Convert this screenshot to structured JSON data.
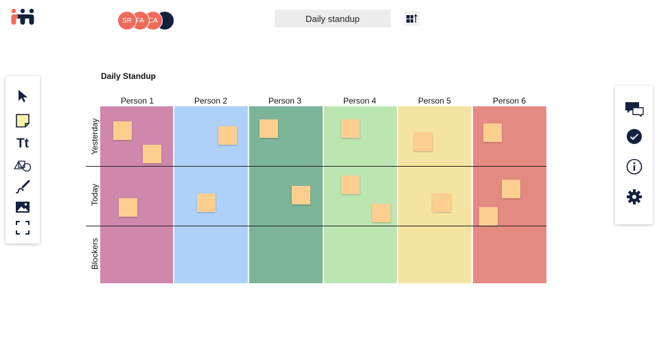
{
  "app": {
    "logo_icon": "team-logo",
    "board_title_box": "Daily standup",
    "layout_button_icon": "layout-sort-icon"
  },
  "avatars": [
    {
      "initials": "SR",
      "color": "#ef6a5a"
    },
    {
      "initials": "FA",
      "color": "#ef6a5a"
    },
    {
      "initials": "CA",
      "color": "#ef6a5a"
    },
    {
      "initials": "",
      "color": "#14213d"
    }
  ],
  "left_toolbar": [
    {
      "name": "select-tool",
      "icon": "cursor-icon"
    },
    {
      "name": "sticky-note-tool",
      "icon": "sticky-note-icon"
    },
    {
      "name": "text-tool",
      "icon": "text-icon",
      "label": "Tt"
    },
    {
      "name": "shapes-tool",
      "icon": "shapes-icon"
    },
    {
      "name": "pen-tool",
      "icon": "pen-icon"
    },
    {
      "name": "image-tool",
      "icon": "image-icon"
    },
    {
      "name": "frame-tool",
      "icon": "frame-icon"
    }
  ],
  "right_toolbar": [
    {
      "name": "comments-button",
      "icon": "chat-icon"
    },
    {
      "name": "vote-button",
      "icon": "check-circle-icon"
    },
    {
      "name": "info-button",
      "icon": "info-icon"
    },
    {
      "name": "settings-button",
      "icon": "gear-icon"
    }
  ],
  "board": {
    "title": "Daily Standup",
    "columns": [
      {
        "label": "Person 1",
        "color": "#cf88ac"
      },
      {
        "label": "Person 2",
        "color": "#add1f8"
      },
      {
        "label": "Person 3",
        "color": "#7cb49a"
      },
      {
        "label": "Person 4",
        "color": "#bce6b1"
      },
      {
        "label": "Person 5",
        "color": "#f5e3a1"
      },
      {
        "label": "Person 6",
        "color": "#e58a82"
      }
    ],
    "rows": [
      {
        "label": "Yesterday"
      },
      {
        "label": "Today"
      },
      {
        "label": "Blockers"
      }
    ],
    "note_color": "#fccf8f"
  }
}
